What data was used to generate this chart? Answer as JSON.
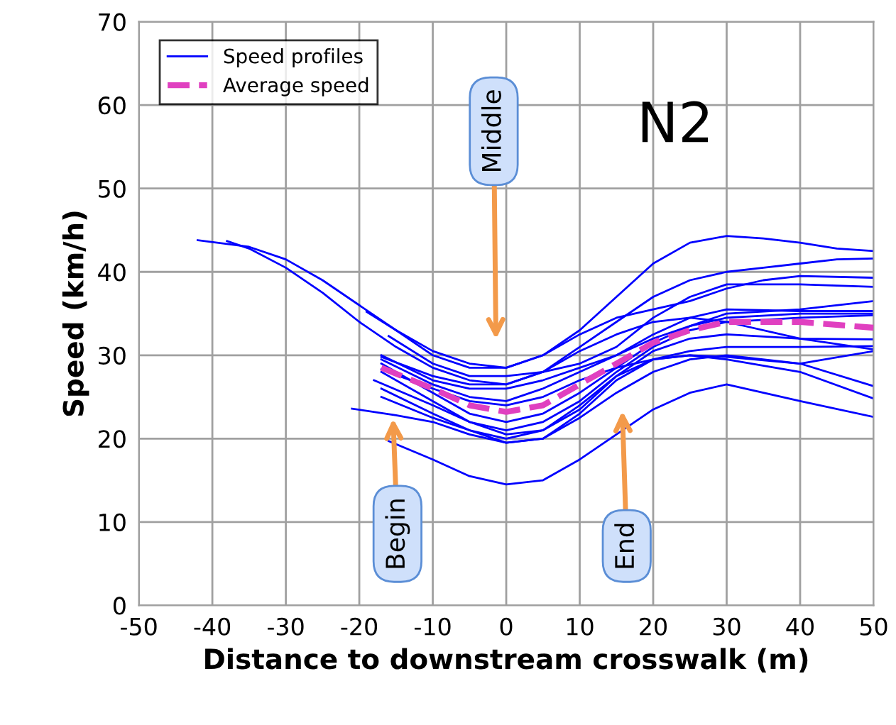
{
  "chart_data": {
    "type": "line",
    "xlabel": "Distance to downstream crosswalk (m)",
    "ylabel": "Speed (km/h)",
    "xlim": [
      -50,
      50
    ],
    "xticks": [
      -50,
      -40,
      -30,
      -20,
      -10,
      0,
      10,
      20,
      30,
      40,
      50
    ],
    "ylim": [
      0,
      70
    ],
    "yticks": [
      0,
      10,
      20,
      30,
      40,
      50,
      60,
      70
    ],
    "grid": true,
    "legend": "top left",
    "line_style": "solid",
    "annotations": [
      "N2",
      "Begin",
      "Middle",
      "End"
    ],
    "series": [
      {
        "name": "Speed profiles",
        "color": "#0000ff",
        "x": [
          -42,
          -35,
          -30,
          -25,
          -20,
          -15,
          -10,
          -5,
          0,
          5,
          10,
          15,
          20,
          25,
          30,
          35,
          40,
          45,
          50
        ],
        "values": [
          43.8,
          43,
          41.5,
          39,
          36,
          33,
          30.5,
          29,
          28.5,
          30,
          33,
          37,
          41,
          43.5,
          44.3,
          44,
          43.5,
          42.8,
          42.5
        ]
      },
      {
        "color": "#0000ff",
        "x": [
          -38,
          -35,
          -30,
          -25,
          -20,
          -15,
          -10,
          -5,
          0,
          5,
          10,
          15,
          20,
          25,
          30,
          35,
          40,
          45,
          50
        ],
        "values": [
          43.7,
          42.8,
          40.5,
          37.5,
          34,
          31,
          28.5,
          27,
          26.5,
          28,
          31,
          34,
          37,
          39,
          40,
          40.5,
          41,
          41.5,
          41.6
        ]
      },
      {
        "color": "#0000ff",
        "x": [
          -21,
          -15,
          -10,
          -5,
          0,
          5,
          10,
          15,
          20,
          25,
          30,
          40,
          50
        ],
        "values": [
          23.6,
          22.8,
          22,
          20.5,
          19.5,
          20,
          22.5,
          25.5,
          28,
          29.5,
          30,
          29,
          26.3
        ]
      },
      {
        "color": "#0000ff",
        "x": [
          -16,
          -10,
          -5,
          0,
          5,
          10,
          15,
          20,
          25,
          30,
          40,
          50
        ],
        "values": [
          19.7,
          17.5,
          15.5,
          14.5,
          15,
          17.5,
          20.5,
          23.5,
          25.5,
          26.5,
          24.5,
          22.6
        ]
      },
      {
        "color": "#0000ff",
        "x": [
          -19,
          -15,
          -10,
          -5,
          0,
          5,
          10,
          15,
          20,
          25,
          30,
          35,
          40,
          50
        ],
        "values": [
          35.2,
          33,
          30,
          28.5,
          28.5,
          30,
          32.5,
          34.5,
          35.5,
          36.5,
          38,
          39,
          39.5,
          39.3
        ]
      },
      {
        "color": "#0000ff",
        "x": [
          -16,
          -10,
          -5,
          0,
          5,
          10,
          15,
          20,
          25,
          30,
          40,
          50
        ],
        "values": [
          32.3,
          29,
          27.5,
          27.5,
          28,
          29,
          31,
          34.5,
          37,
          38.5,
          38.5,
          38.2
        ]
      },
      {
        "color": "#0000ff",
        "x": [
          -17,
          -10,
          -5,
          0,
          5,
          10,
          15,
          20,
          25,
          30,
          40,
          50
        ],
        "values": [
          30,
          27,
          26,
          26,
          27,
          28.5,
          30,
          32,
          33.5,
          35,
          35.5,
          36.5
        ]
      },
      {
        "color": "#0000ff",
        "x": [
          -17,
          -10,
          -5,
          0,
          5,
          10,
          15,
          20,
          25,
          30,
          40,
          50
        ],
        "values": [
          29.5,
          26.5,
          25,
          24.5,
          26,
          28,
          30,
          32.5,
          34.5,
          35.5,
          35.3,
          35.3
        ]
      },
      {
        "color": "#0000ff",
        "x": [
          -17,
          -10,
          -5,
          0,
          5,
          10,
          15,
          20,
          25,
          30,
          40,
          50
        ],
        "values": [
          29,
          25.5,
          23,
          22,
          23,
          25.5,
          28.5,
          31.5,
          33.5,
          34.5,
          35,
          35
        ]
      },
      {
        "color": "#0000ff",
        "x": [
          -17,
          -10,
          -5,
          0,
          5,
          10,
          15,
          20,
          25,
          30,
          40,
          50
        ],
        "values": [
          28,
          24.5,
          22,
          21,
          22,
          24.5,
          28,
          31,
          33,
          34,
          34.5,
          34.8
        ]
      },
      {
        "color": "#0000ff",
        "x": [
          -18,
          -10,
          -5,
          0,
          5,
          10,
          15,
          20,
          25,
          30,
          40,
          50
        ],
        "values": [
          27,
          24,
          22,
          20.5,
          21,
          23.5,
          27.5,
          30.5,
          32,
          32.5,
          32,
          31.9
        ]
      },
      {
        "color": "#0000ff",
        "x": [
          -17,
          -10,
          -5,
          0,
          5,
          10,
          15,
          20,
          25,
          30,
          40,
          50
        ],
        "values": [
          26,
          23,
          21,
          19.5,
          20,
          23,
          27,
          29.5,
          30.5,
          31,
          31,
          31.1
        ]
      },
      {
        "color": "#0000ff",
        "x": [
          -17,
          -10,
          -5,
          0,
          5,
          10,
          15,
          20,
          25,
          30,
          40,
          50
        ],
        "values": [
          25,
          22.5,
          21,
          20,
          21,
          24,
          27.5,
          29.5,
          30,
          29.5,
          28,
          24.8
        ]
      },
      {
        "color": "#0000ff",
        "x": [
          -17,
          -10,
          -5,
          0,
          5,
          10,
          15,
          20,
          25,
          30,
          40,
          50
        ],
        "values": [
          29.8,
          27.5,
          26.5,
          26.5,
          28,
          30.5,
          32.5,
          34,
          34.5,
          34,
          32,
          30.7
        ]
      },
      {
        "color": "#0000ff",
        "x": [
          -17,
          -10,
          -5,
          0,
          5,
          10,
          15,
          20,
          25,
          30,
          40,
          50
        ],
        "values": [
          28.3,
          26,
          24.5,
          24,
          25,
          27,
          28.5,
          29.5,
          30,
          29.8,
          29,
          30.5
        ]
      },
      {
        "name": "Average speed",
        "color": "#e040c0",
        "line_style": "dashed",
        "x": [
          -17,
          -10,
          -5,
          0,
          5,
          10,
          15,
          20,
          25,
          30,
          40,
          50
        ],
        "values": [
          28.5,
          26,
          24,
          23.2,
          24,
          26.5,
          29,
          31.5,
          33,
          34,
          34,
          33.3
        ]
      }
    ]
  }
}
